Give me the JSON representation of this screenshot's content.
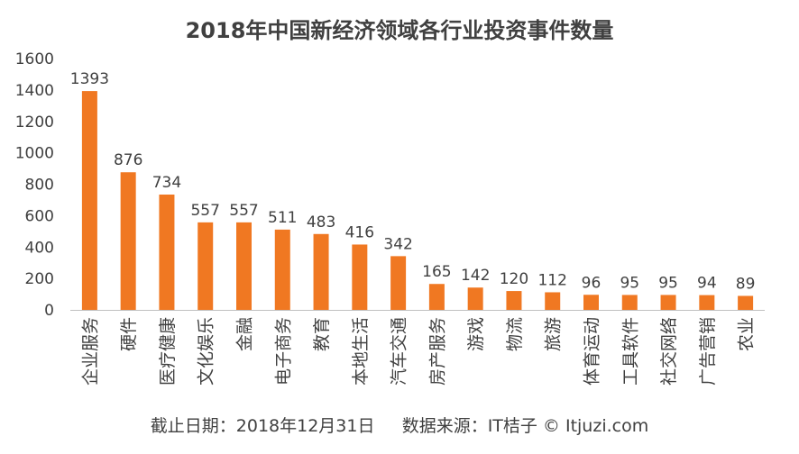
{
  "chart_data": {
    "type": "bar",
    "title": "2018年中国新经济领域各行业投资事件数量",
    "categories": [
      "企业服务",
      "硬件",
      "医疗健康",
      "文化娱乐",
      "金融",
      "电子商务",
      "教育",
      "本地生活",
      "汽车交通",
      "房产服务",
      "游戏",
      "物流",
      "旅游",
      "体育运动",
      "工具软件",
      "社交网络",
      "广告营销",
      "农业"
    ],
    "values": [
      1393,
      876,
      734,
      557,
      557,
      511,
      483,
      416,
      342,
      165,
      142,
      120,
      112,
      96,
      95,
      95,
      94,
      89
    ],
    "ylim": [
      0,
      1600
    ],
    "yticks": [
      0,
      200,
      400,
      600,
      800,
      1000,
      1200,
      1400,
      1600
    ],
    "xlabel": "",
    "ylabel": "",
    "grid": false,
    "bar_color": "#F07822"
  },
  "footer": {
    "date_text": "截止日期：2018年12月31日",
    "source_text": "数据来源：IT桔子 © Itjuzi.com"
  }
}
